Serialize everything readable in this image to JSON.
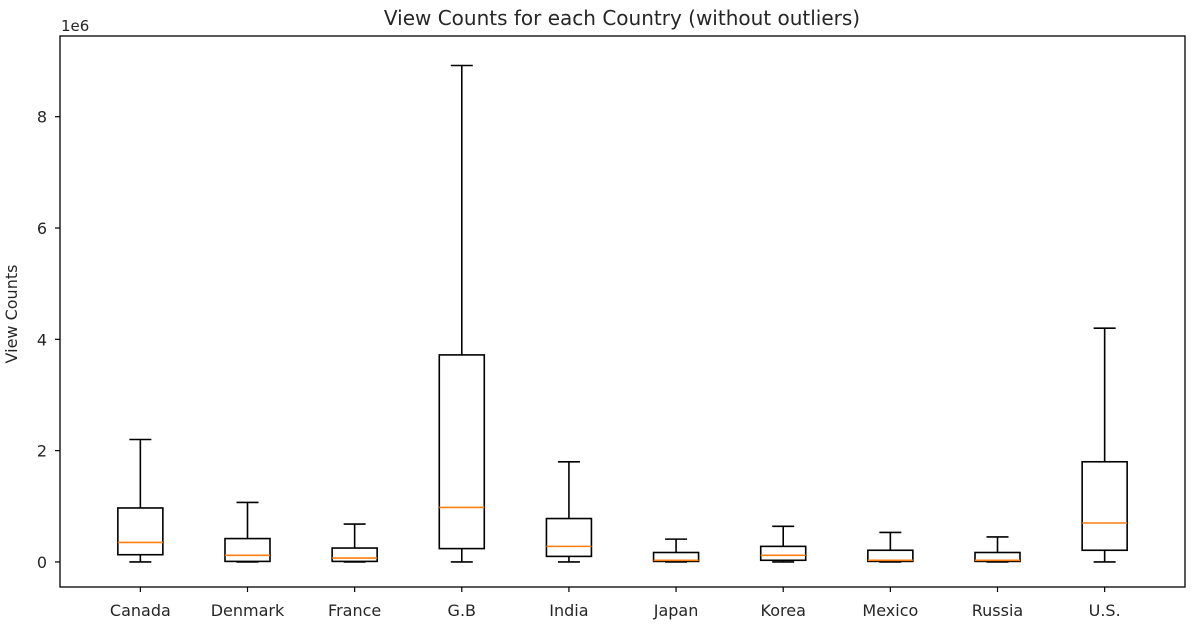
{
  "chart_data": {
    "type": "boxplot",
    "title": "View Counts for each Country (without outliers)",
    "ylabel": "View Counts",
    "xlabel": "",
    "y_scale_label": "1e6",
    "y_tick_values": [
      0,
      2,
      4,
      6,
      8
    ],
    "y_tick_labels": [
      "0",
      "2",
      "4",
      "6",
      "8"
    ],
    "ylim": [
      -0.45,
      9.45
    ],
    "units": "millions",
    "grid": false,
    "legend": "none",
    "colors": {
      "box": "#000000",
      "median": "#ff7f0e"
    },
    "categories": [
      "Canada",
      "Denmark",
      "France",
      "G.B",
      "India",
      "Japan",
      "Korea",
      "Mexico",
      "Russia",
      "U.S."
    ],
    "boxes": [
      {
        "label": "Canada",
        "whisker_low": 0.0,
        "q1": 0.13,
        "median": 0.35,
        "q3": 0.97,
        "whisker_high": 2.2
      },
      {
        "label": "Denmark",
        "whisker_low": 0.0,
        "q1": 0.01,
        "median": 0.12,
        "q3": 0.42,
        "whisker_high": 1.07
      },
      {
        "label": "France",
        "whisker_low": 0.0,
        "q1": 0.01,
        "median": 0.07,
        "q3": 0.25,
        "whisker_high": 0.68
      },
      {
        "label": "G.B",
        "whisker_low": 0.0,
        "q1": 0.24,
        "median": 0.98,
        "q3": 3.72,
        "whisker_high": 8.92
      },
      {
        "label": "India",
        "whisker_low": 0.0,
        "q1": 0.1,
        "median": 0.28,
        "q3": 0.78,
        "whisker_high": 1.8
      },
      {
        "label": "Japan",
        "whisker_low": 0.0,
        "q1": 0.01,
        "median": 0.03,
        "q3": 0.17,
        "whisker_high": 0.41
      },
      {
        "label": "Korea",
        "whisker_low": 0.0,
        "q1": 0.03,
        "median": 0.12,
        "q3": 0.28,
        "whisker_high": 0.64
      },
      {
        "label": "Mexico",
        "whisker_low": 0.0,
        "q1": 0.01,
        "median": 0.03,
        "q3": 0.21,
        "whisker_high": 0.53
      },
      {
        "label": "Russia",
        "whisker_low": 0.0,
        "q1": 0.01,
        "median": 0.03,
        "q3": 0.17,
        "whisker_high": 0.45
      },
      {
        "label": "U.S.",
        "whisker_low": 0.0,
        "q1": 0.21,
        "median": 0.7,
        "q3": 1.8,
        "whisker_high": 4.2
      }
    ]
  }
}
